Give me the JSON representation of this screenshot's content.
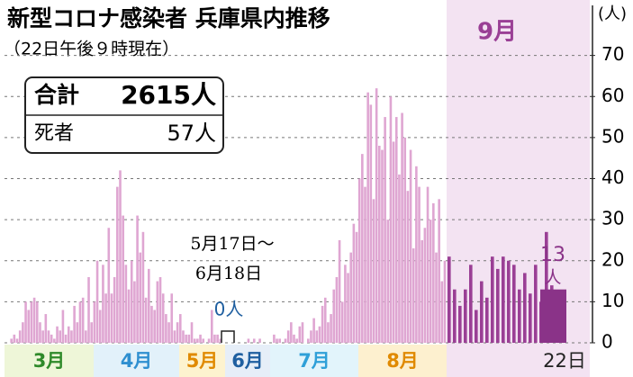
{
  "chart_data": {
    "type": "bar",
    "title": "新型コロナ感染者 兵庫県内推移",
    "subtitle": "（22日午後９時現在）",
    "unit_label": "(人)",
    "summary": [
      {
        "label": "合計",
        "value": "2615人"
      },
      {
        "label": "死者",
        "value": "57人"
      }
    ],
    "annotation": {
      "lines": [
        "5月17日～",
        "6月18日"
      ],
      "text": "0人"
    },
    "highlight_label": "9月",
    "months": [
      {
        "label": "3月",
        "color": "#2f8a2a",
        "bg": "#eef6d8"
      },
      {
        "label": "4月",
        "color": "#2f8fd0",
        "bg": "#e2f1fa"
      },
      {
        "label": "5月",
        "color": "#e08a00",
        "bg": "#fdf3cf"
      },
      {
        "label": "6月",
        "color": "#1f5fa0",
        "bg": "#e6eef8"
      },
      {
        "label": "7月",
        "color": "#2fa0d8",
        "bg": "#e2f4fb"
      },
      {
        "label": "8月",
        "color": "#e08a00",
        "bg": "#fdf0cf"
      },
      {
        "label": "22日",
        "color": "#222222",
        "bg": "#f3e3f2"
      }
    ],
    "segments": [
      {
        "color": "#dfa6d2",
        "values": [
          0,
          0,
          1,
          2,
          1,
          3,
          5,
          10,
          8,
          10,
          11,
          10,
          5,
          3,
          7,
          3,
          2,
          1,
          4,
          3,
          8,
          2,
          4,
          3,
          9,
          5,
          10,
          11,
          3,
          16,
          5,
          10,
          20,
          8,
          19,
          12,
          28,
          12,
          16,
          38,
          42,
          31,
          19,
          13,
          20,
          15,
          31,
          22,
          27,
          11,
          18,
          9,
          8,
          15,
          16,
          12,
          7,
          5,
          12,
          3,
          5,
          7,
          3,
          2,
          2,
          5,
          1,
          1,
          2,
          1,
          0,
          1,
          8,
          2,
          2,
          1,
          0
        ]
      },
      {
        "color": "#dfa6d2",
        "values": [
          0,
          0,
          0,
          0,
          1,
          0,
          1,
          0,
          1,
          0,
          0,
          0,
          0,
          2,
          1,
          1,
          0,
          1,
          3,
          5,
          2,
          1,
          4,
          5,
          0,
          1,
          3,
          6,
          3,
          4,
          9,
          11,
          5,
          7,
          13,
          16,
          25,
          10,
          19,
          17,
          22,
          29,
          27,
          40,
          46,
          38,
          61,
          58,
          35,
          62,
          48,
          47,
          55,
          30,
          60,
          49,
          55,
          41,
          56,
          50,
          37,
          47,
          23,
          43,
          38,
          25,
          28,
          38,
          30,
          34,
          22,
          35,
          15,
          20
        ]
      },
      {
        "color": "#9a3f95",
        "values": [
          21,
          13,
          9,
          13,
          19,
          8,
          15,
          11,
          21,
          18,
          21,
          20,
          19,
          13,
          17,
          12,
          19,
          10,
          27,
          14,
          10,
          13
        ]
      }
    ],
    "last_color": "#8a3388",
    "last_unit": "人",
    "ylim": [
      0,
      80
    ],
    "yticks": [
      0,
      10,
      20,
      30,
      40,
      50,
      60,
      70
    ],
    "grid": true
  }
}
